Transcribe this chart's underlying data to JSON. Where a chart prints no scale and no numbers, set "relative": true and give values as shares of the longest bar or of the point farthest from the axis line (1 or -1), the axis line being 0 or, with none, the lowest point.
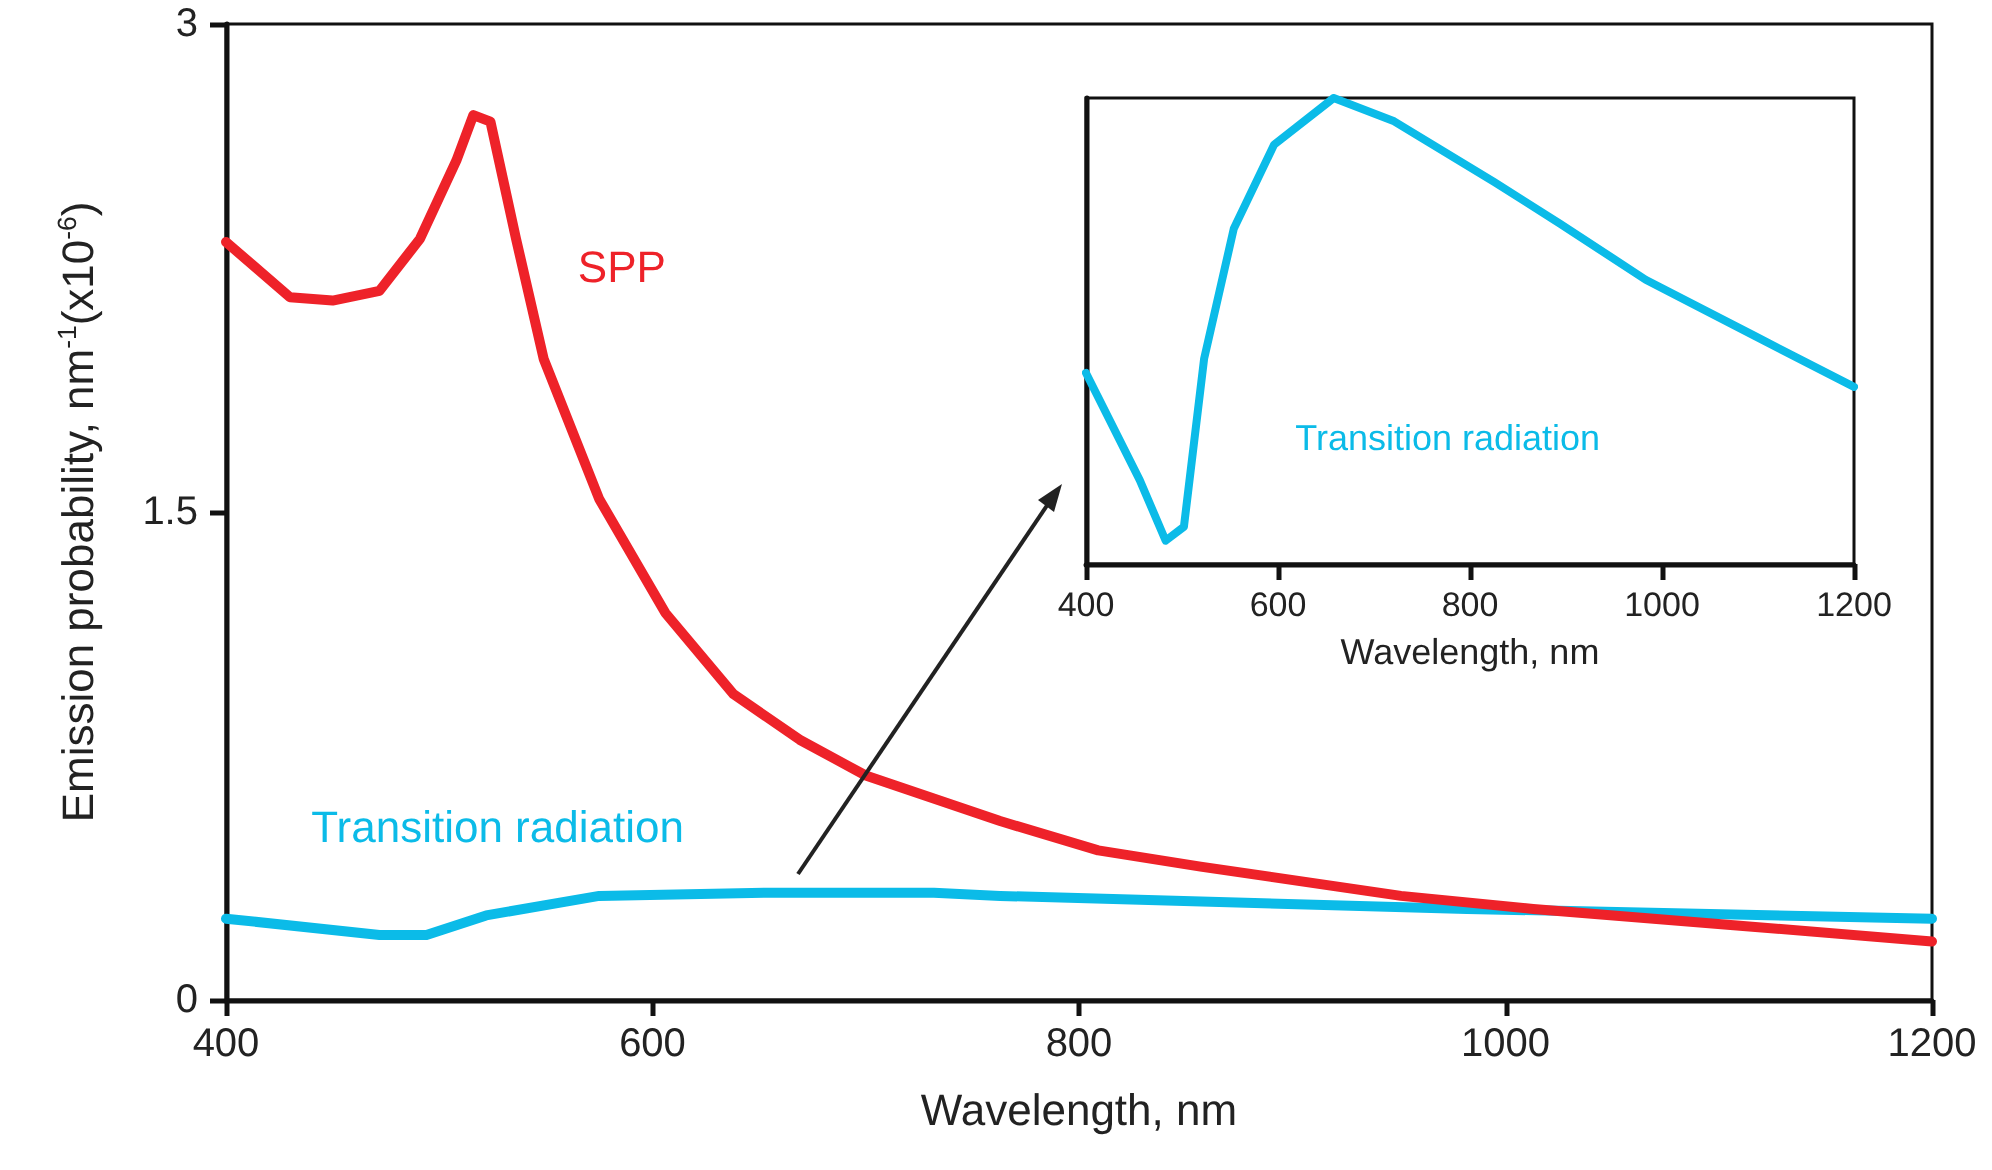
{
  "chart_data": [
    {
      "type": "line",
      "xlabel": "Wavelength, nm",
      "ylabel": "Emission probability, nm$^{-1}$(x10$^{-6}$)",
      "xlim": [
        400,
        1200
      ],
      "xticks": [
        400,
        600,
        800,
        1000,
        1200
      ],
      "ylim": [
        0,
        3
      ],
      "yticks": [
        0,
        1.5,
        3
      ],
      "marker": "none",
      "line_style": "solid",
      "series": [
        {
          "name": "SPP",
          "color": "#ee2229",
          "x": [
            400,
            430,
            450,
            472,
            491,
            508,
            516,
            524,
            536,
            549,
            575,
            606,
            638,
            669,
            700,
            763,
            809,
            857,
            951,
            1013,
            1107,
            1200
          ],
          "values": [
            2.33,
            2.16,
            2.15,
            2.18,
            2.34,
            2.58,
            2.72,
            2.7,
            2.34,
            1.97,
            1.54,
            1.19,
            0.94,
            0.8,
            0.69,
            0.55,
            0.46,
            0.41,
            0.32,
            0.28,
            0.23,
            0.18
          ]
        },
        {
          "name": "Transition radiation",
          "color": "#0bbbe8",
          "x": [
            400,
            472,
            494,
            522,
            575,
            653,
            732,
            763,
            982,
            1200
          ],
          "values": [
            0.25,
            0.2,
            0.2,
            0.26,
            0.32,
            0.33,
            0.33,
            0.32,
            0.28,
            0.25
          ]
        }
      ]
    },
    {
      "type": "line",
      "relative": true,
      "tick_labels": "x",
      "xlabel": "Wavelength, nm",
      "xlim": [
        400,
        1200
      ],
      "xticks": [
        400,
        600,
        800,
        1000,
        1200
      ],
      "marker": "none",
      "line_style": "solid",
      "series": [
        {
          "name": "Transition radiation",
          "color": "#0bbbe8",
          "x": [
            400,
            456,
            483,
            502,
            523,
            554,
            596,
            658,
            721,
            825,
            894,
            983,
            1096,
            1200
          ],
          "values": [
            0.41,
            0.18,
            0.05,
            0.08,
            0.44,
            0.72,
            0.9,
            1.0,
            0.95,
            0.82,
            0.73,
            0.61,
            0.49,
            0.38
          ]
        }
      ]
    }
  ]
}
